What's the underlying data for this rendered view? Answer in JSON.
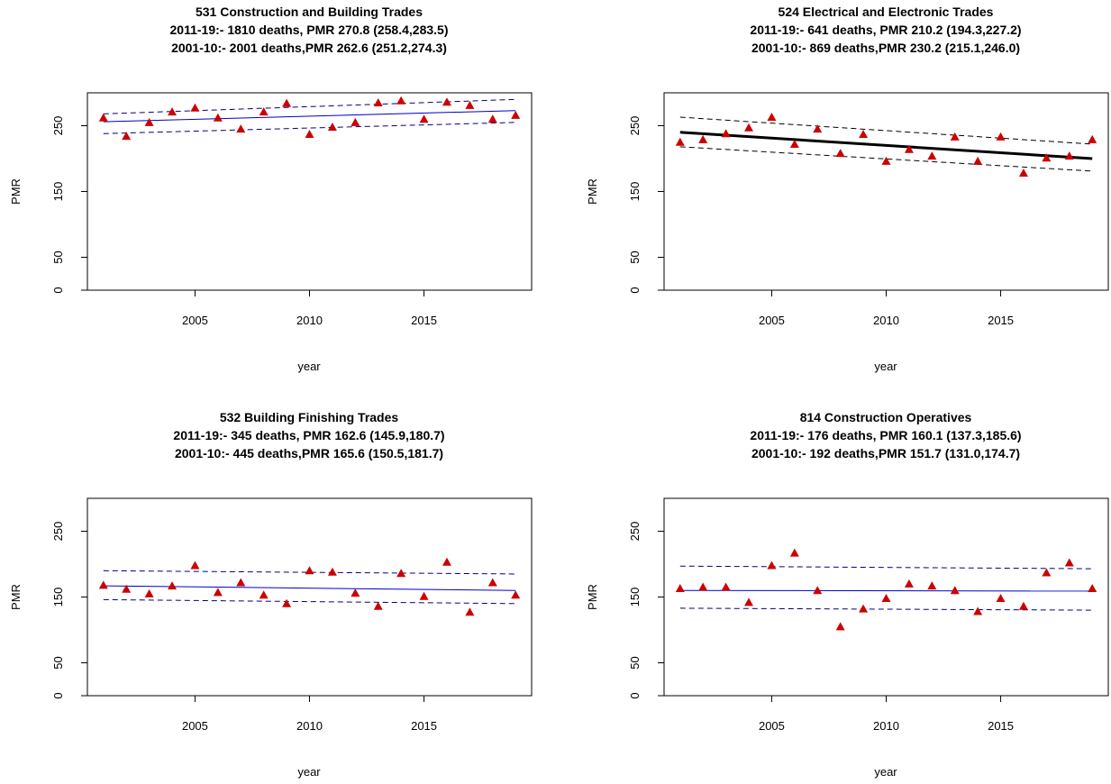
{
  "chart_data": [
    {
      "type": "scatter",
      "title": "531 Construction and Building Trades",
      "subtitle": [
        "2011-19:- 1810 deaths, PMR 270.8 (258.4,283.5)",
        "2001-10:- 2001 deaths,PMR 262.6 (251.2,274.3)"
      ],
      "xlabel": "year",
      "ylabel": "PMR",
      "x": [
        2001,
        2002,
        2003,
        2004,
        2005,
        2006,
        2007,
        2008,
        2009,
        2010,
        2011,
        2012,
        2013,
        2014,
        2015,
        2016,
        2017,
        2018,
        2019
      ],
      "xlim": [
        2000.3,
        2019.7
      ],
      "xticks": [
        2005,
        2010,
        2015
      ],
      "ylim": [
        0,
        300
      ],
      "yticks": [
        0,
        50,
        150,
        250
      ],
      "series": [
        {
          "color": "#cc0000",
          "values": [
            262,
            234,
            255,
            271,
            277,
            262,
            245,
            271,
            284,
            237,
            248,
            255,
            285,
            288,
            260,
            286,
            281,
            260,
            266
          ]
        }
      ],
      "fit": {
        "x": [
          2001,
          2019
        ],
        "values": [
          256,
          273
        ],
        "color": "#0000cc",
        "width": 1
      },
      "ci": [
        {
          "x": [
            2001,
            2019
          ],
          "values": [
            268,
            290
          ]
        },
        {
          "x": [
            2001,
            2019
          ],
          "values": [
            238,
            255
          ]
        }
      ],
      "ci_color": "#000080"
    },
    {
      "type": "scatter",
      "title": "524 Electrical and Electronic Trades",
      "subtitle": [
        "2011-19:- 641 deaths, PMR 210.2 (194.3,227.2)",
        "2001-10:- 869 deaths,PMR 230.2 (215.1,246.0)"
      ],
      "xlabel": "year",
      "ylabel": "PMR",
      "x": [
        2001,
        2002,
        2003,
        2004,
        2005,
        2006,
        2007,
        2008,
        2009,
        2010,
        2011,
        2012,
        2013,
        2014,
        2015,
        2016,
        2017,
        2018,
        2019
      ],
      "xlim": [
        2000.3,
        2019.7
      ],
      "xticks": [
        2005,
        2010,
        2015
      ],
      "ylim": [
        0,
        300
      ],
      "yticks": [
        0,
        50,
        150,
        250
      ],
      "series": [
        {
          "color": "#cc0000",
          "values": [
            225,
            229,
            238,
            247,
            263,
            222,
            245,
            208,
            237,
            196,
            214,
            204,
            233,
            196,
            233,
            178,
            201,
            204,
            229
          ]
        }
      ],
      "fit": {
        "x": [
          2001,
          2019
        ],
        "values": [
          240,
          200
        ],
        "color": "#000000",
        "width": 3
      },
      "ci": [
        {
          "x": [
            2001,
            2019
          ],
          "values": [
            263,
            222
          ]
        },
        {
          "x": [
            2001,
            2019
          ],
          "values": [
            218,
            181
          ]
        }
      ],
      "ci_color": "#000000"
    },
    {
      "type": "scatter",
      "title": "532 Building Finishing Trades",
      "subtitle": [
        "2011-19:- 345 deaths, PMR 162.6 (145.9,180.7)",
        "2001-10:- 445 deaths,PMR 165.6 (150.5,181.7)"
      ],
      "xlabel": "year",
      "ylabel": "PMR",
      "x": [
        2001,
        2002,
        2003,
        2004,
        2005,
        2006,
        2007,
        2008,
        2009,
        2010,
        2011,
        2012,
        2013,
        2014,
        2015,
        2016,
        2017,
        2018,
        2019
      ],
      "xlim": [
        2000.3,
        2019.7
      ],
      "xticks": [
        2005,
        2010,
        2015
      ],
      "ylim": [
        0,
        300
      ],
      "yticks": [
        0,
        50,
        150,
        250
      ],
      "series": [
        {
          "color": "#cc0000",
          "values": [
            168,
            162,
            155,
            167,
            198,
            157,
            172,
            153,
            140,
            190,
            188,
            156,
            136,
            186,
            151,
            203,
            127,
            172,
            153
          ]
        }
      ],
      "fit": {
        "x": [
          2001,
          2019
        ],
        "values": [
          167,
          160
        ],
        "color": "#0000cc",
        "width": 1
      },
      "ci": [
        {
          "x": [
            2001,
            2019
          ],
          "values": [
            190,
            185
          ]
        },
        {
          "x": [
            2001,
            2019
          ],
          "values": [
            146,
            140
          ]
        }
      ],
      "ci_color": "#000080"
    },
    {
      "type": "scatter",
      "title": "814 Construction Operatives",
      "subtitle": [
        "2011-19:- 176 deaths, PMR 160.1 (137.3,185.6)",
        "2001-10:- 192 deaths,PMR 151.7 (131.0,174.7)"
      ],
      "xlabel": "year",
      "ylabel": "PMR",
      "x": [
        2001,
        2002,
        2003,
        2004,
        2005,
        2006,
        2007,
        2008,
        2009,
        2010,
        2011,
        2012,
        2013,
        2014,
        2015,
        2016,
        2017,
        2018,
        2019
      ],
      "xlim": [
        2000.3,
        2019.7
      ],
      "xticks": [
        2005,
        2010,
        2015
      ],
      "ylim": [
        0,
        300
      ],
      "yticks": [
        0,
        50,
        150,
        250
      ],
      "series": [
        {
          "color": "#cc0000",
          "values": [
            163,
            165,
            165,
            142,
            198,
            217,
            160,
            105,
            132,
            148,
            170,
            167,
            160,
            128,
            148,
            136,
            187,
            202,
            163
          ]
        }
      ],
      "fit": {
        "x": [
          2001,
          2019
        ],
        "values": [
          160,
          159
        ],
        "color": "#0000cc",
        "width": 1
      },
      "ci": [
        {
          "x": [
            2001,
            2019
          ],
          "values": [
            197,
            193
          ]
        },
        {
          "x": [
            2001,
            2019
          ],
          "values": [
            133,
            130
          ]
        }
      ],
      "ci_color": "#000080"
    }
  ]
}
